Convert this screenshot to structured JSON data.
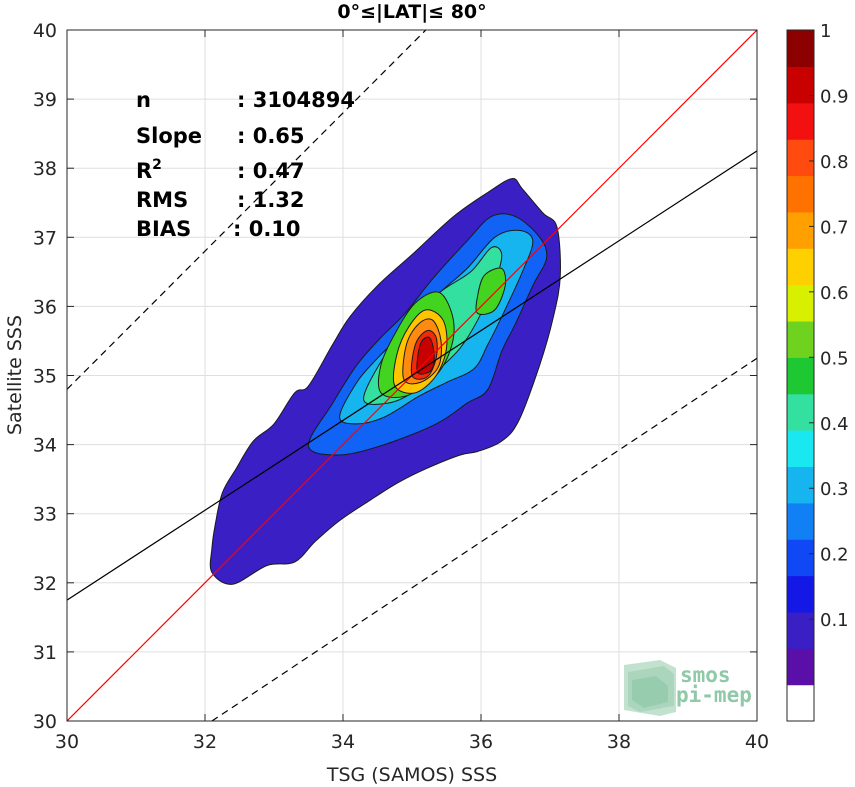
{
  "chart_data": {
    "type": "heatmap",
    "subtype": "density contour",
    "title": "0°≤|LAT|≤ 80°",
    "xlabel": "TSG (SAMOS) SSS",
    "ylabel": "Satellite SSS",
    "xlim": [
      30,
      40
    ],
    "ylim": [
      30,
      40
    ],
    "xticks": [
      30,
      32,
      34,
      36,
      38,
      40
    ],
    "yticks": [
      30,
      31,
      32,
      33,
      34,
      35,
      36,
      37,
      38,
      39,
      40
    ],
    "grid": true,
    "stats": [
      {
        "label": "n",
        "value": ": 3104894"
      },
      {
        "label": "Slope",
        "value": ": 0.65"
      },
      {
        "label": "R",
        "sup": "2",
        "value": ": 0.47"
      },
      {
        "label": "RMS",
        "value": ": 1.32"
      },
      {
        "label": "BIAS",
        "value": ": 0.10"
      }
    ],
    "lines": [
      {
        "name": "1:1",
        "color": "#ff0000",
        "style": "solid",
        "x": [
          30,
          40
        ],
        "y": [
          30,
          40
        ]
      },
      {
        "name": "regression",
        "color": "#000000",
        "style": "solid",
        "x": [
          30,
          40
        ],
        "y": [
          31.75,
          38.25
        ]
      },
      {
        "name": "upper bound",
        "color": "#000000",
        "style": "dashed",
        "x": [
          30,
          40
        ],
        "y": [
          34.8,
          44.8
        ]
      },
      {
        "name": "lower bound",
        "color": "#000000",
        "style": "dashed",
        "x": [
          32.1,
          40
        ],
        "y": [
          30,
          35.25
        ]
      }
    ],
    "contours": [
      {
        "level": 0.05,
        "color": "#3a1fc4",
        "points": [
          [
            32.1,
            32.15
          ],
          [
            32.4,
            31.98
          ],
          [
            32.9,
            32.25
          ],
          [
            33.3,
            32.3
          ],
          [
            33.6,
            32.6
          ],
          [
            33.95,
            32.9
          ],
          [
            34.4,
            33.2
          ],
          [
            34.8,
            33.45
          ],
          [
            35.2,
            33.65
          ],
          [
            35.7,
            33.85
          ],
          [
            35.95,
            33.9
          ],
          [
            36.3,
            34.05
          ],
          [
            36.55,
            34.35
          ],
          [
            36.85,
            35.15
          ],
          [
            37.05,
            35.85
          ],
          [
            37.15,
            36.45
          ],
          [
            37.1,
            37.15
          ],
          [
            36.9,
            37.35
          ],
          [
            36.6,
            37.7
          ],
          [
            36.45,
            37.85
          ],
          [
            36.1,
            37.65
          ],
          [
            35.6,
            37.3
          ],
          [
            35.0,
            36.75
          ],
          [
            34.5,
            36.3
          ],
          [
            34.1,
            35.85
          ],
          [
            33.85,
            35.45
          ],
          [
            33.5,
            34.85
          ],
          [
            33.3,
            34.75
          ],
          [
            33.0,
            34.3
          ],
          [
            32.7,
            34.05
          ],
          [
            32.45,
            33.65
          ],
          [
            32.25,
            33.3
          ],
          [
            32.15,
            32.85
          ],
          [
            32.1,
            32.5
          ]
        ]
      },
      {
        "level": 0.2,
        "color": "#1163f5",
        "points": [
          [
            33.5,
            33.98
          ],
          [
            33.95,
            33.85
          ],
          [
            34.6,
            34.0
          ],
          [
            35.35,
            34.3
          ],
          [
            35.8,
            34.6
          ],
          [
            36.1,
            34.8
          ],
          [
            36.3,
            35.35
          ],
          [
            36.5,
            35.75
          ],
          [
            36.75,
            36.3
          ],
          [
            36.95,
            36.7
          ],
          [
            36.85,
            37.0
          ],
          [
            36.5,
            37.3
          ],
          [
            36.15,
            37.3
          ],
          [
            35.8,
            36.95
          ],
          [
            35.3,
            36.4
          ],
          [
            34.9,
            35.9
          ],
          [
            34.55,
            35.55
          ],
          [
            34.2,
            35.15
          ],
          [
            33.85,
            34.6
          ]
        ]
      },
      {
        "level": 0.3,
        "color": "#17b5f0",
        "points": [
          [
            33.95,
            34.4
          ],
          [
            34.2,
            34.3
          ],
          [
            34.6,
            34.4
          ],
          [
            35.1,
            34.7
          ],
          [
            35.5,
            34.9
          ],
          [
            35.9,
            35.1
          ],
          [
            36.1,
            35.45
          ],
          [
            36.3,
            35.85
          ],
          [
            36.6,
            36.5
          ],
          [
            36.75,
            36.95
          ],
          [
            36.55,
            37.1
          ],
          [
            36.2,
            37.0
          ],
          [
            35.8,
            36.55
          ],
          [
            35.35,
            36.15
          ],
          [
            34.9,
            35.65
          ],
          [
            34.5,
            35.25
          ],
          [
            34.2,
            34.9
          ]
        ]
      },
      {
        "level": 0.4,
        "color": "#33e0a0",
        "points": [
          [
            34.3,
            34.65
          ],
          [
            34.65,
            34.6
          ],
          [
            35.0,
            34.75
          ],
          [
            35.4,
            35.1
          ],
          [
            35.7,
            35.4
          ],
          [
            35.95,
            35.8
          ],
          [
            36.2,
            36.35
          ],
          [
            36.3,
            36.75
          ],
          [
            36.15,
            36.85
          ],
          [
            35.85,
            36.5
          ],
          [
            35.4,
            36.2
          ],
          [
            34.95,
            35.75
          ],
          [
            34.55,
            35.2
          ]
        ]
      },
      {
        "level": 0.55,
        "color": "#43d420",
        "points": [
          [
            34.55,
            34.75
          ],
          [
            34.9,
            34.7
          ],
          [
            35.3,
            34.95
          ],
          [
            35.55,
            35.35
          ],
          [
            35.6,
            35.8
          ],
          [
            35.4,
            36.2
          ],
          [
            35.05,
            36.05
          ],
          [
            34.75,
            35.6
          ],
          [
            34.55,
            35.15
          ]
        ]
      },
      {
        "level": 0.55,
        "color": "#43d420",
        "points": [
          [
            35.95,
            35.9
          ],
          [
            36.2,
            35.95
          ],
          [
            36.35,
            36.3
          ],
          [
            36.3,
            36.55
          ],
          [
            36.05,
            36.45
          ],
          [
            35.95,
            36.15
          ]
        ]
      },
      {
        "level": 0.7,
        "color": "#ffc400",
        "points": [
          [
            34.75,
            34.85
          ],
          [
            35.05,
            34.75
          ],
          [
            35.35,
            35.0
          ],
          [
            35.5,
            35.4
          ],
          [
            35.45,
            35.8
          ],
          [
            35.2,
            35.95
          ],
          [
            34.95,
            35.7
          ],
          [
            34.78,
            35.3
          ]
        ]
      },
      {
        "level": 0.8,
        "color": "#ff8a10",
        "points": [
          [
            34.88,
            34.95
          ],
          [
            35.12,
            34.9
          ],
          [
            35.38,
            35.12
          ],
          [
            35.42,
            35.5
          ],
          [
            35.3,
            35.8
          ],
          [
            35.1,
            35.75
          ],
          [
            34.92,
            35.45
          ]
        ]
      },
      {
        "level": 0.9,
        "color": "#f22a0a",
        "points": [
          [
            35.0,
            35.0
          ],
          [
            35.22,
            34.98
          ],
          [
            35.35,
            35.25
          ],
          [
            35.35,
            35.55
          ],
          [
            35.22,
            35.65
          ],
          [
            35.05,
            35.45
          ]
        ]
      },
      {
        "level": 1.0,
        "color": "#c80000",
        "points": [
          [
            35.08,
            35.05
          ],
          [
            35.28,
            35.08
          ],
          [
            35.32,
            35.32
          ],
          [
            35.25,
            35.55
          ],
          [
            35.12,
            35.45
          ]
        ]
      }
    ],
    "colorbar": {
      "min": 0.05,
      "max": 1,
      "ticks": [
        0.1,
        0.2,
        0.3,
        0.4,
        0.5,
        0.6,
        0.7,
        0.8,
        0.9,
        1
      ],
      "tick_labels": [
        "0.1",
        "0.2",
        "0.3",
        "0.4",
        "0.5",
        "0.6",
        "0.7",
        "0.8",
        "0.9",
        "1"
      ],
      "colors": [
        "#ffffff",
        "#5a0fa8",
        "#3a1fc4",
        "#1418e6",
        "#1148f5",
        "#1180f5",
        "#17b5f0",
        "#1ae8f0",
        "#33e0a0",
        "#1ec832",
        "#6ed21e",
        "#d8f000",
        "#ffd000",
        "#ffa000",
        "#ff7200",
        "#ff4a10",
        "#f21010",
        "#c80000",
        "#8c0000"
      ]
    }
  },
  "logo": {
    "line1": "smos",
    "line2": "pi-mep"
  }
}
